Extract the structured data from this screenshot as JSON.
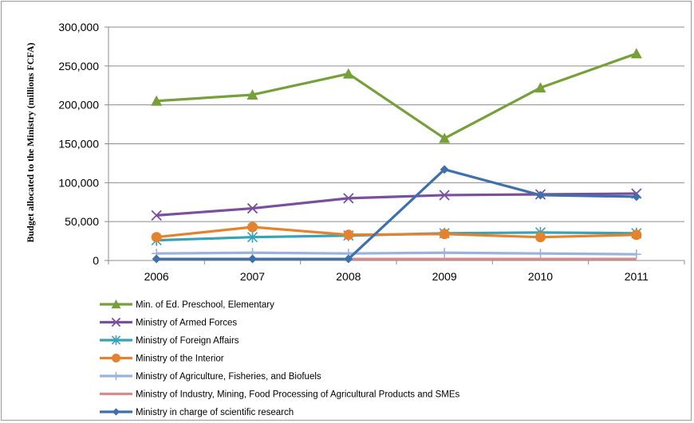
{
  "chart_data": {
    "type": "line",
    "x": [
      "2006",
      "2007",
      "2008",
      "2009",
      "2010",
      "2011"
    ],
    "ylabel": "Budget allocated to the Ministry (millions FCFA)",
    "xlabel": "",
    "title": "",
    "ylim": [
      0,
      300000
    ],
    "yticks": [
      0,
      50000,
      100000,
      150000,
      200000,
      250000,
      300000
    ],
    "ytick_labels": [
      "0",
      "50,000",
      "100,000",
      "150,000",
      "200,000",
      "250,000",
      "300,000"
    ],
    "grid": "horizontal",
    "legend_position": "bottom",
    "series": [
      {
        "name": "Min. of Ed. Preschool, Elementary",
        "color": "#77a03b",
        "marker": "triangle",
        "values": [
          205000,
          213000,
          240000,
          157000,
          222000,
          266000
        ]
      },
      {
        "name": "Ministry of Armed Forces",
        "color": "#7a4f9e",
        "marker": "x",
        "values": [
          58000,
          67000,
          80000,
          84000,
          85000,
          86000
        ]
      },
      {
        "name": "Ministry of Foreign Affairs",
        "color": "#3aa2b7",
        "marker": "star",
        "values": [
          26000,
          30000,
          32000,
          35000,
          36000,
          35000
        ]
      },
      {
        "name": "Ministry of the Interior",
        "color": "#e5822d",
        "marker": "circle",
        "values": [
          30000,
          43000,
          33000,
          34000,
          30000,
          33000
        ]
      },
      {
        "name": "Ministry of Agriculture, Fisheries, and Biofuels",
        "color": "#9bb3dc",
        "marker": "plus",
        "values": [
          9000,
          10000,
          9000,
          10000,
          9000,
          8000
        ]
      },
      {
        "name": "Ministry of Industry, Mining, Food Processing of Agricultural Products and SMEs",
        "color": "#d98b8c",
        "marker": "dash",
        "values": [
          null,
          null,
          2000,
          2000,
          2000,
          2000
        ]
      },
      {
        "name": "Ministry in charge of scientific research",
        "color": "#3e70ab",
        "marker": "diamond",
        "values": [
          2000,
          2000,
          2000,
          117000,
          84000,
          82000
        ]
      }
    ]
  }
}
